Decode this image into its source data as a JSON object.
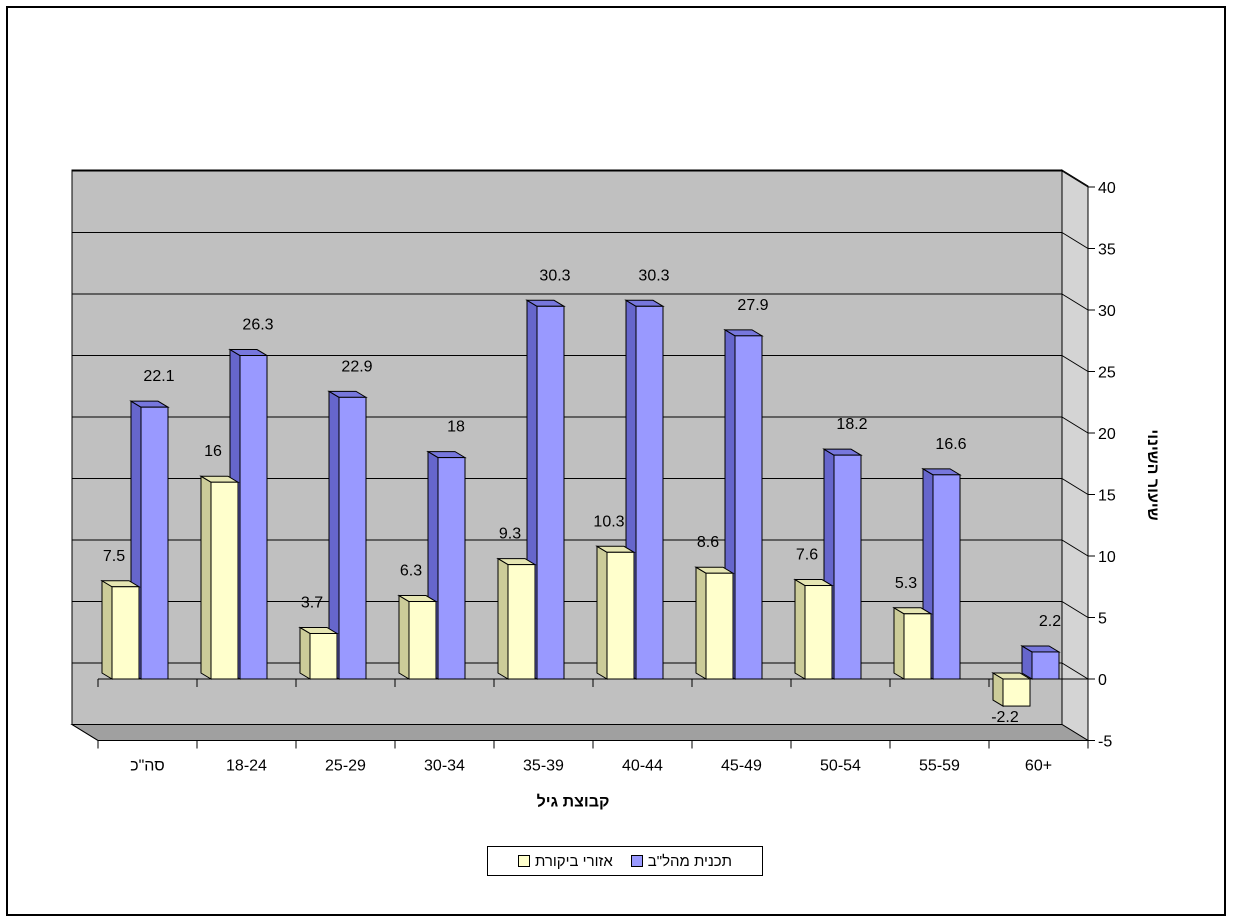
{
  "chart_data": {
    "type": "bar",
    "categories": [
      "סה\"כ",
      "18-24",
      "25-29",
      "30-34",
      "35-39",
      "40-44",
      "45-49",
      "50-54",
      "55-59",
      "60+"
    ],
    "series": [
      {
        "name": "אזורי ביקורת",
        "values": [
          7.5,
          16,
          3.7,
          6.3,
          9.3,
          10.3,
          8.6,
          7.6,
          5.3,
          -2.2
        ]
      },
      {
        "name": "תכנית מהל\"ב",
        "values": [
          22.1,
          26.3,
          22.9,
          18,
          30.3,
          30.3,
          27.9,
          18.2,
          16.6,
          2.2
        ]
      }
    ],
    "data_labels": [
      [
        "7.5",
        "16",
        "3.7",
        "6.3",
        "9.3",
        "10.3",
        "8.6",
        "7.6",
        "5.3",
        "-2.2"
      ],
      [
        "22.1",
        "26.3",
        "22.9",
        "18",
        "30.3",
        "30.3",
        "27.9",
        "18.2",
        "16.6",
        "2.2"
      ]
    ],
    "xlabel": "קבוצת גיל",
    "ylabel": "שיעור השינוי",
    "ylim": [
      -5,
      40
    ],
    "yticks": [
      "-5",
      "0",
      "5",
      "10",
      "15",
      "20",
      "25",
      "30",
      "35",
      "40"
    ],
    "grid": true,
    "legend_position": "bottom",
    "colors": {
      "series_front": [
        "#FFFFCC",
        "#9999FF"
      ],
      "series_side": [
        "#CCCC99",
        "#6666CC"
      ],
      "series_top": [
        "#E6E6B3",
        "#7777DD"
      ],
      "back_wall": "#C0C0C0",
      "floor": "#A0A0A0"
    }
  },
  "legend": {
    "items": [
      "תכנית מהל\"ב",
      "אזורי ביקורת"
    ]
  }
}
